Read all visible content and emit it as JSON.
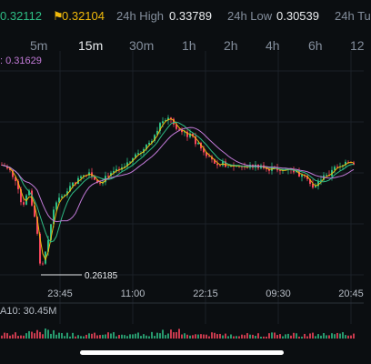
{
  "stats": {
    "last_price": "0.32112",
    "mark_price": "0.32104",
    "high_label": "24h High",
    "high_value": "0.33789",
    "low_label": "24h Low",
    "low_value": "0.30539",
    "turnover_label": "24h Tu"
  },
  "timeframes": [
    "5m",
    "15m",
    "30m",
    "1h",
    "2h",
    "4h",
    "6h",
    "12"
  ],
  "active_timeframe": "15m",
  "ma_label": ": 0.31629",
  "chart_data": {
    "type": "candlestick",
    "time_labels": [
      "23:45",
      "11:00",
      "22:15",
      "09:30",
      "20:45"
    ],
    "min_marker": "0.26185",
    "series": [
      {
        "color": "#f0b90b"
      },
      {
        "color": "#2ebd85"
      },
      {
        "color": "#c27ad8"
      }
    ],
    "up_color": "#2ebd85",
    "down_color": "#f6465d"
  },
  "volume": {
    "label": "A10: 30.45M"
  }
}
